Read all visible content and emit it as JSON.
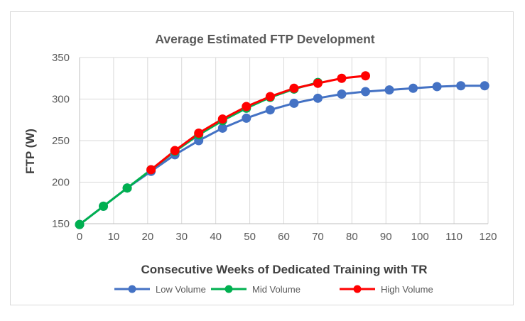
{
  "chart_data": {
    "type": "line",
    "title": "Average Estimated FTP Development",
    "xlabel": "Consecutive Weeks of Dedicated Training with TR",
    "ylabel": "FTP (W)",
    "xlim": [
      0,
      120
    ],
    "ylim": [
      150,
      350
    ],
    "xticks": [
      0,
      10,
      20,
      30,
      40,
      50,
      60,
      70,
      80,
      90,
      100,
      110,
      120
    ],
    "yticks": [
      150,
      200,
      250,
      300,
      350
    ],
    "grid": true,
    "legend_position": "bottom",
    "series": [
      {
        "name": "Low Volume",
        "color": "#4472c4",
        "x": [
          0,
          7,
          14,
          21,
          28,
          35,
          42,
          49,
          56,
          63,
          70,
          77,
          84,
          91,
          98,
          105,
          112,
          119
        ],
        "y": [
          149,
          171,
          193,
          213,
          233,
          250,
          265,
          277,
          287,
          295,
          301,
          306,
          309,
          311,
          313,
          315,
          316,
          316
        ]
      },
      {
        "name": "Mid Volume",
        "color": "#00b050",
        "x": [
          0,
          7,
          14,
          21,
          28,
          35,
          42,
          49,
          56,
          63,
          70
        ],
        "y": [
          149,
          171,
          193,
          215,
          237,
          257,
          274,
          289,
          302,
          312,
          320
        ]
      },
      {
        "name": "High Volume",
        "color": "#ff0000",
        "x": [
          21,
          28,
          35,
          42,
          49,
          56,
          63,
          70,
          77,
          84
        ],
        "y": [
          215,
          238,
          259,
          276,
          291,
          303,
          313,
          319,
          325,
          328
        ]
      }
    ]
  }
}
